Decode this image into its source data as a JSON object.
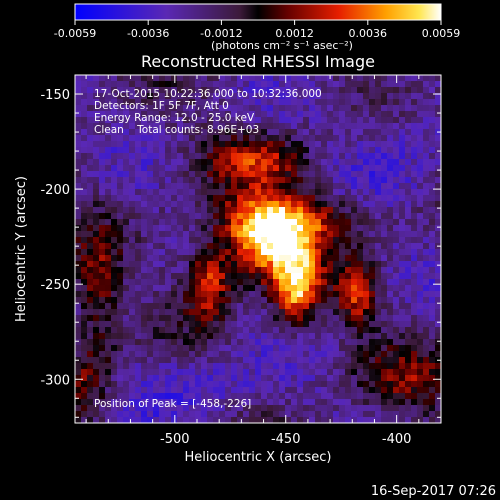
{
  "colorbar": {
    "tick_labels": [
      "-0.0059",
      "-0.0036",
      "-0.0012",
      "0.0012",
      "0.0036",
      "0.0059"
    ],
    "unit_label": "(photons cm⁻² s⁻¹ asec⁻²)"
  },
  "chart_data": {
    "type": "heatmap",
    "title": "Reconstructed RHESSI Image",
    "xlabel": "Heliocentric X (arcsec)",
    "ylabel": "Heliocentric Y (arcsec)",
    "x_ticks": [
      -500,
      -450,
      -400
    ],
    "x_tick_labels": [
      "-500",
      "-450",
      "-400"
    ],
    "y_ticks": [
      -150,
      -200,
      -250,
      -300
    ],
    "y_tick_labels": [
      "-150",
      "-200",
      "-250",
      "-300"
    ],
    "xlim": [
      -545,
      -380
    ],
    "ylim": [
      -323,
      -140
    ],
    "value_range": [
      -0.0059,
      0.0059
    ],
    "peak": {
      "x": -458,
      "y": -226,
      "value": 0.0059
    },
    "annotations": [
      "17-Oct-2015 10:22:36.000 to 10:32:36.000",
      "Detectors: 1F 5F 7F, Att 0",
      "Energy Range: 12.0 - 25.0 keV",
      "Clean    Total counts: 8.96E+03",
      "Position of Peak = [-458,-226]"
    ]
  },
  "footer_timestamp": "16-Sep-2017 07:26"
}
